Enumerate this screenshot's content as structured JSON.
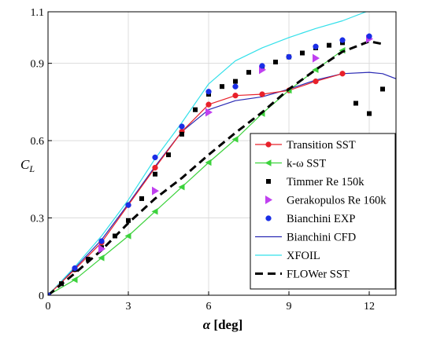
{
  "chart_data": {
    "type": "line",
    "title": "",
    "xlabel": "α [deg]",
    "ylabel": "C_L",
    "xlim": [
      0,
      13
    ],
    "ylim": [
      0,
      1.1
    ],
    "xticks": [
      0,
      3,
      6,
      9,
      12
    ],
    "yticks": [
      0,
      0.3,
      0.6,
      0.9,
      1.1
    ],
    "xtick_labels": [
      "0",
      "3",
      "6",
      "9",
      "12"
    ],
    "ytick_labels": [
      "0",
      "0.3",
      "0.6",
      "0.9",
      "1.1"
    ],
    "grid": true,
    "legend_position": "bottom-right",
    "series": [
      {
        "name": "Transition SST",
        "color": "#e8202a",
        "line": "solid",
        "marker": "circle",
        "x": [
          0,
          1,
          2,
          3,
          4,
          5,
          6,
          7,
          8,
          9,
          10,
          11
        ],
        "y": [
          0,
          0.1,
          0.205,
          0.35,
          0.495,
          0.635,
          0.74,
          0.775,
          0.78,
          0.795,
          0.83,
          0.86
        ]
      },
      {
        "name": "k-ω SST",
        "color": "#3cd23c",
        "line": "solid",
        "marker": "triangle-left",
        "x": [
          0,
          1,
          2,
          3,
          4,
          5,
          6,
          7,
          8,
          9,
          10,
          11
        ],
        "y": [
          0,
          0.06,
          0.145,
          0.23,
          0.325,
          0.42,
          0.515,
          0.605,
          0.705,
          0.795,
          0.875,
          0.95
        ]
      },
      {
        "name": "Timmer Re 150k",
        "color": "#000000",
        "line": "none",
        "marker": "square",
        "x": [
          0,
          0.5,
          1,
          1.5,
          2,
          2.5,
          3,
          3.5,
          4,
          4.5,
          5,
          5.5,
          6,
          6.5,
          7,
          7.5,
          8,
          8.5,
          9,
          9.5,
          10,
          10.5,
          11,
          11.5,
          12,
          12.5
        ],
        "y": [
          0,
          0.045,
          0.1,
          0.14,
          0.185,
          0.23,
          0.29,
          0.375,
          0.47,
          0.545,
          0.625,
          0.72,
          0.78,
          0.81,
          0.83,
          0.865,
          0.88,
          0.905,
          0.925,
          0.94,
          0.96,
          0.97,
          0.98,
          0.745,
          0.705,
          0.8
        ]
      },
      {
        "name": "Gerakopulos Re 160k",
        "color": "#c040f0",
        "line": "none",
        "marker": "triangle-right",
        "x": [
          0,
          2,
          4,
          6,
          8,
          10,
          12
        ],
        "y": [
          0,
          0.18,
          0.405,
          0.71,
          0.875,
          0.92,
          0.995
        ]
      },
      {
        "name": "Bianchini EXP",
        "color": "#1a2ee6",
        "line": "none",
        "marker": "circle",
        "x": [
          0,
          1,
          2,
          3,
          4,
          5,
          6,
          7,
          8,
          9,
          10,
          11,
          12
        ],
        "y": [
          0,
          0.105,
          0.21,
          0.35,
          0.535,
          0.655,
          0.79,
          0.81,
          0.89,
          0.925,
          0.965,
          0.99,
          1.005
        ]
      },
      {
        "name": "Bianchini CFD",
        "color": "#2a2ab4",
        "line": "solid",
        "marker": "none",
        "x": [
          0,
          1,
          2,
          3,
          4,
          5,
          6,
          7,
          8,
          9,
          10,
          11,
          12,
          12.5,
          13
        ],
        "y": [
          0,
          0.105,
          0.215,
          0.355,
          0.5,
          0.635,
          0.72,
          0.755,
          0.77,
          0.8,
          0.835,
          0.86,
          0.865,
          0.86,
          0.84
        ]
      },
      {
        "name": "XFOIL",
        "color": "#33e0ea",
        "line": "solid",
        "marker": "none",
        "x": [
          0,
          1,
          2,
          3,
          4,
          5,
          6,
          7,
          8,
          9,
          10,
          11,
          12
        ],
        "y": [
          0,
          0.11,
          0.23,
          0.37,
          0.53,
          0.67,
          0.82,
          0.91,
          0.96,
          1.0,
          1.035,
          1.065,
          1.105
        ]
      },
      {
        "name": "FLOWer SST",
        "color": "#000000",
        "line": "dashed",
        "marker": "none",
        "x": [
          0,
          1,
          2,
          3,
          4,
          5,
          6,
          7,
          8,
          9,
          10,
          11,
          12,
          12.5
        ],
        "y": [
          0,
          0.085,
          0.175,
          0.28,
          0.375,
          0.455,
          0.545,
          0.63,
          0.71,
          0.8,
          0.875,
          0.945,
          0.985,
          0.975
        ]
      }
    ]
  }
}
